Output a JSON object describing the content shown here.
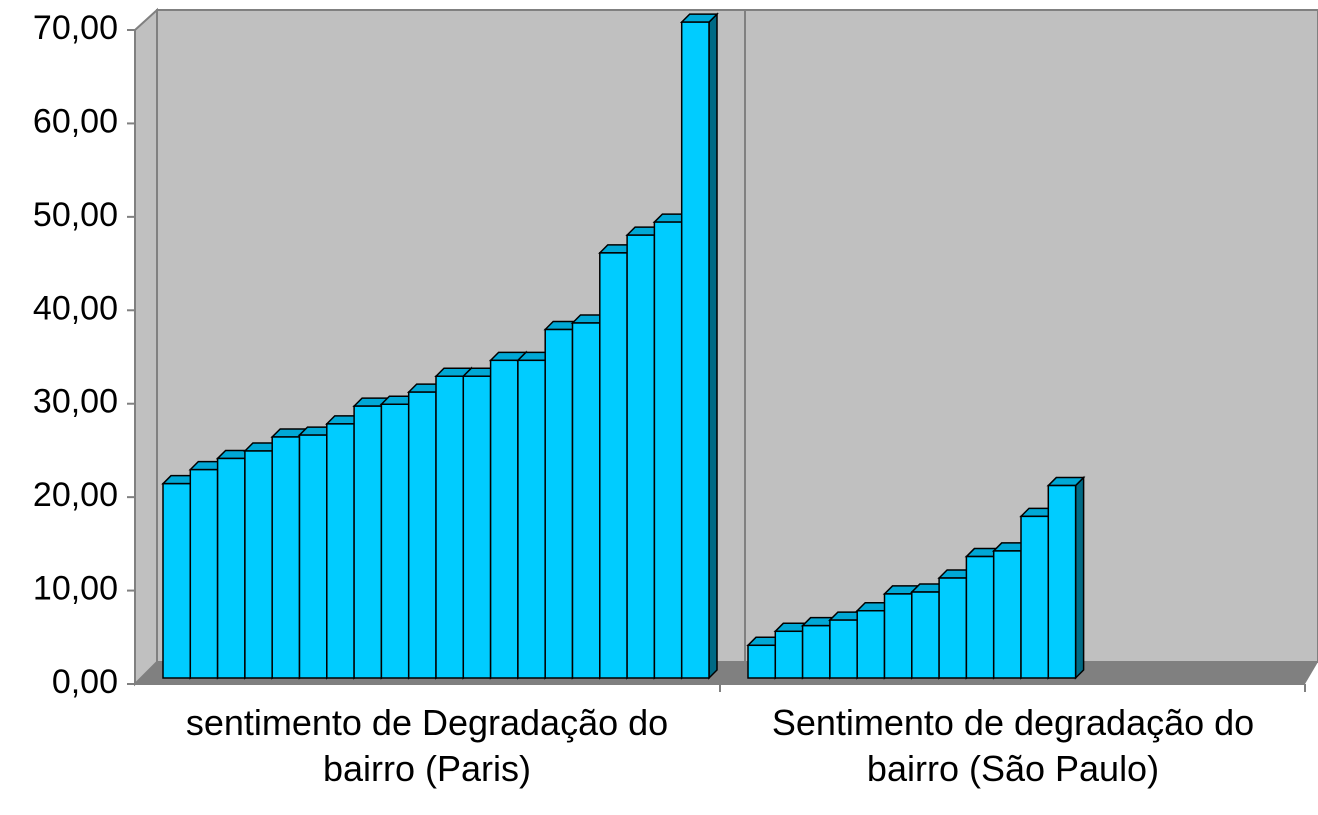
{
  "chart_data": {
    "type": "bar",
    "categories": [
      "sentimento de Degradação do bairro (Paris)",
      "Sentimento de degradação do bairro (São Paulo)"
    ],
    "values": [
      [
        20.8,
        22.3,
        23.5,
        24.3,
        25.8,
        26.0,
        27.2,
        29.1,
        29.3,
        30.6,
        32.3,
        32.3,
        34.0,
        34.0,
        37.3,
        38.0,
        45.5,
        47.4,
        48.8,
        70.2
      ],
      [
        3.5,
        5.0,
        5.6,
        6.2,
        7.2,
        9.0,
        9.2,
        10.7,
        13.0,
        13.6,
        17.3,
        20.6
      ]
    ],
    "color": "#00ccff",
    "ylim": [
      0,
      70
    ],
    "yticks": [
      {
        "value": 0,
        "label": "0,00"
      },
      {
        "value": 10,
        "label": "10,00"
      },
      {
        "value": 20,
        "label": "20,00"
      },
      {
        "value": 30,
        "label": "30,00"
      },
      {
        "value": 40,
        "label": "40,00"
      },
      {
        "value": 50,
        "label": "50,00"
      },
      {
        "value": 60,
        "label": "60,00"
      },
      {
        "value": 70,
        "label": "70,00"
      }
    ]
  }
}
